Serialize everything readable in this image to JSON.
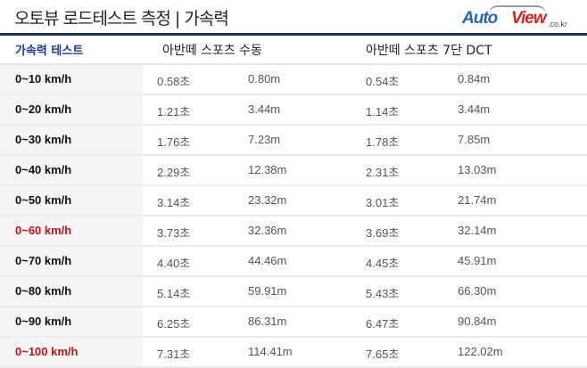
{
  "header": {
    "title": "오토뷰 로드테스트 측정 | 가속력",
    "logo": {
      "text_auto": "Auto",
      "text_view": "View",
      "text_domain": ".co.kr"
    }
  },
  "table": {
    "columns": [
      "가속력 테스트",
      "아반떼 스포츠  수동",
      "아반떼 스포츠  7단 DCT"
    ],
    "highlight_color": "#c0141b",
    "rows": [
      {
        "label": "0~10 km/h",
        "highlight": false,
        "manual_time": "0.58초",
        "manual_dist": "0.80m",
        "dct_time": "0.54초",
        "dct_dist": "0.84m"
      },
      {
        "label": "0~20 km/h",
        "highlight": false,
        "manual_time": "1.21초",
        "manual_dist": "3.44m",
        "dct_time": "1.14초",
        "dct_dist": "3.44m"
      },
      {
        "label": "0~30 km/h",
        "highlight": false,
        "manual_time": "1.76초",
        "manual_dist": "7.23m",
        "dct_time": "1.78초",
        "dct_dist": "7.85m"
      },
      {
        "label": "0~40 km/h",
        "highlight": false,
        "manual_time": "2.29초",
        "manual_dist": "12.38m",
        "dct_time": "2.31초",
        "dct_dist": "13.03m"
      },
      {
        "label": "0~50 km/h",
        "highlight": false,
        "manual_time": "3.14초",
        "manual_dist": "23.32m",
        "dct_time": "3.01초",
        "dct_dist": "21.74m"
      },
      {
        "label": "0~60 km/h",
        "highlight": true,
        "manual_time": "3.73초",
        "manual_dist": "32.36m",
        "dct_time": "3.69초",
        "dct_dist": "32.14m"
      },
      {
        "label": "0~70 km/h",
        "highlight": false,
        "manual_time": "4.40초",
        "manual_dist": "44.46m",
        "dct_time": "4.45초",
        "dct_dist": "45.91m"
      },
      {
        "label": "0~80 km/h",
        "highlight": false,
        "manual_time": "5.14초",
        "manual_dist": "59.91m",
        "dct_time": "5.43초",
        "dct_dist": "66.30m"
      },
      {
        "label": "0~90 km/h",
        "highlight": false,
        "manual_time": "6.25초",
        "manual_dist": "86.31m",
        "dct_time": "6.47초",
        "dct_dist": "90.84m"
      },
      {
        "label": "0~100 km/h",
        "highlight": true,
        "manual_time": "7.31초",
        "manual_dist": "114.41m",
        "dct_time": "7.65초",
        "dct_dist": "122.02m"
      }
    ]
  }
}
